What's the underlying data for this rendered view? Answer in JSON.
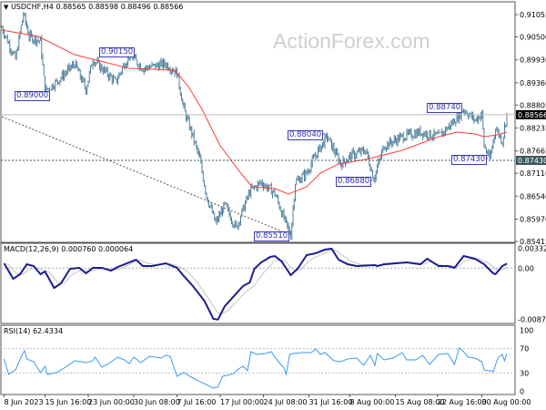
{
  "header": {
    "symbol": "USDCHF,H4",
    "ohlc": "0.88565 0.88598 0.88496 0.88566",
    "menu_icon": "triangle-down-icon"
  },
  "watermark": "ActionForex.com",
  "colors": {
    "bars": "#4f7f9a",
    "moving_average": "#ff3b3b",
    "macd_main": "#1c1c8f",
    "macd_signal": "#c4c4c4",
    "rsi": "#3a9af0",
    "label_border": "#3b3bb0",
    "current_price_tag": "#000000",
    "support_tag": "#3a5858"
  },
  "annotations": [
    "0.90150",
    "0.89000",
    "0.88040",
    "0.86880",
    "0.85510",
    "0.88740",
    "0.87430"
  ],
  "chart_data": [
    {
      "type": "line",
      "panel": "price",
      "title": "USDCHF,H4",
      "x_unit": "H4 bar index",
      "y_ticks": [
        "0.91055",
        "0.90500",
        "0.89930",
        "0.89360",
        "0.88805",
        "0.88235",
        "0.87665",
        "0.87110",
        "0.86540",
        "0.85970",
        "0.85415"
      ],
      "ylim": [
        0.85415,
        0.91055
      ],
      "current_price": "0.88566",
      "support_level": "0.87430",
      "x_ticks": [
        {
          "bar": 2,
          "label": "8 Jun 2023"
        },
        {
          "bar": 38,
          "label": "15 Jun 16:00"
        },
        {
          "bar": 76,
          "label": "23 Jun 00:00"
        },
        {
          "bar": 116,
          "label": "30 Jun 08:00"
        },
        {
          "bar": 154,
          "label": "7 Jul 16:00"
        },
        {
          "bar": 192,
          "label": "17 Jul 00:00"
        },
        {
          "bar": 230,
          "label": "24 Jul 08:00"
        },
        {
          "bar": 270,
          "label": "31 Jul 16:00"
        },
        {
          "bar": 306,
          "label": "8 Aug 00:00"
        },
        {
          "bar": 346,
          "label": "15 Aug 08:00"
        },
        {
          "bar": 383,
          "label": "22 Aug 16:00"
        },
        {
          "bar": 422,
          "label": "30 Aug 00:00"
        }
      ],
      "price_path": [
        [
          0,
          0.90738
        ],
        [
          12,
          0.89945
        ],
        [
          19,
          0.91078
        ],
        [
          24,
          0.90511
        ],
        [
          34,
          0.90398
        ],
        [
          38,
          0.89152
        ],
        [
          48,
          0.89379
        ],
        [
          64,
          0.89832
        ],
        [
          74,
          0.89198
        ],
        [
          80,
          0.89945
        ],
        [
          92,
          0.89605
        ],
        [
          100,
          0.89379
        ],
        [
          112,
          0.90058
        ],
        [
          124,
          0.89719
        ],
        [
          144,
          0.89832
        ],
        [
          154,
          0.89605
        ],
        [
          160,
          0.88699
        ],
        [
          168,
          0.8802
        ],
        [
          174,
          0.87454
        ],
        [
          180,
          0.86548
        ],
        [
          188,
          0.85868
        ],
        [
          196,
          0.86321
        ],
        [
          206,
          0.85755
        ],
        [
          218,
          0.86661
        ],
        [
          228,
          0.86887
        ],
        [
          240,
          0.86615
        ],
        [
          248,
          0.85981
        ],
        [
          254,
          0.85574
        ],
        [
          258,
          0.86887
        ],
        [
          268,
          0.87114
        ],
        [
          276,
          0.87567
        ],
        [
          286,
          0.8802
        ],
        [
          298,
          0.87341
        ],
        [
          308,
          0.87567
        ],
        [
          320,
          0.8768
        ],
        [
          327,
          0.86976
        ],
        [
          336,
          0.87793
        ],
        [
          352,
          0.8802
        ],
        [
          368,
          0.88133
        ],
        [
          384,
          0.8802
        ],
        [
          396,
          0.8836
        ],
        [
          406,
          0.88699
        ],
        [
          416,
          0.88427
        ],
        [
          422,
          0.88586
        ],
        [
          424,
          0.87793
        ],
        [
          429,
          0.87454
        ],
        [
          434,
          0.88246
        ],
        [
          440,
          0.87907
        ],
        [
          444,
          0.88586
        ]
      ],
      "moving_average": [
        [
          0,
          0.9067
        ],
        [
          32,
          0.90511
        ],
        [
          64,
          0.90058
        ],
        [
          112,
          0.89719
        ],
        [
          152,
          0.89673
        ],
        [
          164,
          0.89266
        ],
        [
          176,
          0.88699
        ],
        [
          192,
          0.87793
        ],
        [
          210,
          0.87114
        ],
        [
          220,
          0.86774
        ],
        [
          240,
          0.86729
        ],
        [
          252,
          0.86593
        ],
        [
          268,
          0.86774
        ],
        [
          280,
          0.87114
        ],
        [
          296,
          0.87341
        ],
        [
          320,
          0.87454
        ],
        [
          352,
          0.8768
        ],
        [
          384,
          0.8802
        ],
        [
          400,
          0.88133
        ],
        [
          416,
          0.88088
        ],
        [
          424,
          0.8802
        ],
        [
          436,
          0.88065
        ],
        [
          444,
          0.88133
        ]
      ],
      "trendline": [
        [
          0,
          0.88518
        ],
        [
          254,
          0.85574
        ]
      ]
    },
    {
      "type": "line",
      "panel": "macd",
      "title": "MACD(12,26,9) 0.000760 0.000064",
      "y_ticks": [
        "0.003328",
        "0.00",
        "-0.008707"
      ],
      "ylim": [
        -0.008707,
        0.003328
      ],
      "main": [
        [
          2,
          0.00082
        ],
        [
          10,
          -0.00181
        ],
        [
          16,
          -0.00103
        ],
        [
          22,
          0.00066
        ],
        [
          28,
          0.00035
        ],
        [
          34,
          -0.00103
        ],
        [
          38,
          -0.00057
        ],
        [
          46,
          -0.00335
        ],
        [
          52,
          -0.00258
        ],
        [
          60,
          -0.00011
        ],
        [
          68,
          5e-05
        ],
        [
          74,
          -0.00088
        ],
        [
          80,
          5e-05
        ],
        [
          88,
          5e-05
        ],
        [
          96,
          -0.00042
        ],
        [
          102,
          0.0002
        ],
        [
          118,
          0.00143
        ],
        [
          124,
          0.00035
        ],
        [
          132,
          0.00035
        ],
        [
          144,
          0.00082
        ],
        [
          154,
          5e-05
        ],
        [
          160,
          -0.00134
        ],
        [
          168,
          -0.00304
        ],
        [
          178,
          -0.00551
        ],
        [
          186,
          -0.00859
        ],
        [
          190,
          -0.0087
        ],
        [
          196,
          -0.00644
        ],
        [
          204,
          -0.00474
        ],
        [
          212,
          -0.00304
        ],
        [
          218,
          -0.00242
        ],
        [
          222,
          -0.00011
        ],
        [
          228,
          0.00097
        ],
        [
          236,
          0.0019
        ],
        [
          240,
          0.00205
        ],
        [
          246,
          0.00113
        ],
        [
          254,
          -0.00119
        ],
        [
          260,
          -0.00011
        ],
        [
          268,
          0.00221
        ],
        [
          276,
          0.00252
        ],
        [
          284,
          0.00313
        ],
        [
          290,
          0.00329
        ],
        [
          296,
          0.00143
        ],
        [
          304,
          0.00066
        ],
        [
          312,
          0.00035
        ],
        [
          328,
          0.00051
        ],
        [
          330,
          0.00035
        ],
        [
          336,
          0.00066
        ],
        [
          356,
          0.00097
        ],
        [
          368,
          0.00066
        ],
        [
          374,
          0.00159
        ],
        [
          384,
          0.00035
        ],
        [
          392,
          0.00035
        ],
        [
          398,
          5e-05
        ],
        [
          406,
          0.00205
        ],
        [
          416,
          0.00159
        ],
        [
          424,
          0.00066
        ],
        [
          432,
          -0.00088
        ],
        [
          434,
          -0.00103
        ],
        [
          440,
          0.00035
        ],
        [
          444,
          0.00076
        ]
      ]
    },
    {
      "type": "line",
      "panel": "rsi",
      "title": "RSI(14) 62.4334",
      "y_ticks": [
        "100",
        "70",
        "30",
        "0"
      ],
      "ylim": [
        0,
        100
      ],
      "levels": [
        70,
        30
      ],
      "values": [
        [
          2,
          53
        ],
        [
          6,
          27.5
        ],
        [
          12,
          35
        ],
        [
          18,
          60.5
        ],
        [
          20,
          66.5
        ],
        [
          22,
          53
        ],
        [
          28,
          48.5
        ],
        [
          32,
          36.5
        ],
        [
          34,
          30.5
        ],
        [
          38,
          41
        ],
        [
          40,
          27.5
        ],
        [
          48,
          30.5
        ],
        [
          56,
          39.5
        ],
        [
          64,
          50
        ],
        [
          70,
          48.5
        ],
        [
          74,
          47
        ],
        [
          80,
          50
        ],
        [
          82,
          56
        ],
        [
          88,
          39.5
        ],
        [
          94,
          45.5
        ],
        [
          102,
          56
        ],
        [
          108,
          51.5
        ],
        [
          112,
          45.5
        ],
        [
          116,
          56
        ],
        [
          122,
          47
        ],
        [
          130,
          57.5
        ],
        [
          140,
          54.5
        ],
        [
          144,
          59
        ],
        [
          148,
          57.5
        ],
        [
          154,
          24.5
        ],
        [
          160,
          30.5
        ],
        [
          168,
          21.5
        ],
        [
          176,
          14
        ],
        [
          186,
          5
        ],
        [
          190,
          6.5
        ],
        [
          194,
          24.5
        ],
        [
          198,
          26
        ],
        [
          204,
          29
        ],
        [
          208,
          36.5
        ],
        [
          212,
          41
        ],
        [
          216,
          33.5
        ],
        [
          219,
          65
        ],
        [
          224,
          60.5
        ],
        [
          232,
          62
        ],
        [
          237,
          65
        ],
        [
          240,
          56
        ],
        [
          244,
          47
        ],
        [
          248,
          38
        ],
        [
          250,
          27.5
        ],
        [
          253,
          60.5
        ],
        [
          256,
          62
        ],
        [
          264,
          63.5
        ],
        [
          272,
          63.5
        ],
        [
          276,
          69.5
        ],
        [
          280,
          60.5
        ],
        [
          284,
          63.5
        ],
        [
          292,
          50
        ],
        [
          298,
          48.5
        ],
        [
          304,
          53
        ],
        [
          312,
          54.5
        ],
        [
          318,
          42.5
        ],
        [
          324,
          59
        ],
        [
          328,
          42.5
        ],
        [
          330,
          62
        ],
        [
          336,
          51.5
        ],
        [
          344,
          54.5
        ],
        [
          352,
          63.5
        ],
        [
          356,
          51.5
        ],
        [
          364,
          51.5
        ],
        [
          370,
          59
        ],
        [
          372,
          54.5
        ],
        [
          376,
          44
        ],
        [
          384,
          60.5
        ],
        [
          392,
          62
        ],
        [
          398,
          44
        ],
        [
          402,
          71
        ],
        [
          406,
          65
        ],
        [
          410,
          56
        ],
        [
          416,
          54.5
        ],
        [
          422,
          48.5
        ],
        [
          424,
          35
        ],
        [
          428,
          33.5
        ],
        [
          430,
          33.5
        ],
        [
          432,
          32
        ],
        [
          436,
          54.5
        ],
        [
          440,
          60.5
        ],
        [
          442,
          50
        ],
        [
          444,
          62.4334
        ]
      ]
    }
  ]
}
